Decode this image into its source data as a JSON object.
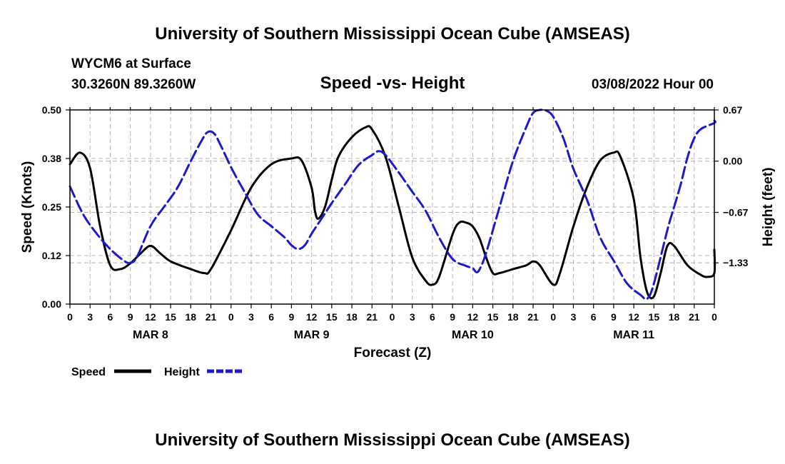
{
  "header": {
    "title": "University of Southern Mississippi Ocean Cube (AMSEAS)",
    "station": "WYCM6 at Surface",
    "location": "30.3260N  89.3260W",
    "subtitle": "Speed -vs- Height",
    "date": "03/08/2022 Hour 00",
    "footer_title": "University of Southern Mississippi Ocean Cube (AMSEAS)"
  },
  "colors": {
    "speed": "#000000",
    "height": "#1a1acc",
    "grid": "#b4b4b4"
  },
  "chart_data": {
    "type": "line",
    "title": "Speed -vs- Height",
    "xlabel": "Forecast (Z)",
    "ylabel_left": "Speed (Knots)",
    "ylabel_right": "Height (feet)",
    "xlim": [
      0,
      96
    ],
    "ylim_left": [
      0,
      0.5
    ],
    "ylim_right": [
      -1.87,
      0.67
    ],
    "y_ticks_left": [
      {
        "value": 0.0,
        "label": "0.00"
      },
      {
        "value": 0.125,
        "label": "0.12"
      },
      {
        "value": 0.25,
        "label": "0.25"
      },
      {
        "value": 0.375,
        "label": "0.38"
      },
      {
        "value": 0.5,
        "label": "0.50"
      }
    ],
    "y_ticks_right": [
      {
        "value": 0.67,
        "label": "0.67"
      },
      {
        "value": 0.0,
        "label": "0.00"
      },
      {
        "value": -0.67,
        "label": "−0.67"
      },
      {
        "value": -1.33,
        "label": "−1.33"
      }
    ],
    "x_tick_labels": [
      "0",
      "3",
      "6",
      "9",
      "12",
      "15",
      "18",
      "21",
      "0",
      "3",
      "6",
      "9",
      "12",
      "15",
      "18",
      "21",
      "0",
      "3",
      "6",
      "9",
      "12",
      "15",
      "18",
      "21",
      "0",
      "3",
      "6",
      "9",
      "12",
      "15",
      "18",
      "21",
      "0"
    ],
    "day_labels": [
      {
        "x": 12,
        "label": "MAR 8"
      },
      {
        "x": 36,
        "label": "MAR 9"
      },
      {
        "x": 60,
        "label": "MAR 10"
      },
      {
        "x": 84,
        "label": "MAR 11"
      }
    ],
    "legend": [
      {
        "name": "Speed",
        "style": "solid"
      },
      {
        "name": "Height",
        "style": "dashed"
      }
    ],
    "series": [
      {
        "name": "Speed",
        "axis": "left",
        "points": [
          [
            0,
            0.36
          ],
          [
            1.5,
            0.39
          ],
          [
            3,
            0.35
          ],
          [
            4.5,
            0.2
          ],
          [
            6,
            0.1
          ],
          [
            7.5,
            0.09
          ],
          [
            9,
            0.105
          ],
          [
            10.5,
            0.13
          ],
          [
            12,
            0.15
          ],
          [
            13.5,
            0.13
          ],
          [
            15,
            0.11
          ],
          [
            18,
            0.09
          ],
          [
            20,
            0.08
          ],
          [
            21,
            0.09
          ],
          [
            24,
            0.19
          ],
          [
            27,
            0.3
          ],
          [
            30,
            0.36
          ],
          [
            33,
            0.375
          ],
          [
            34.5,
            0.37
          ],
          [
            36,
            0.3
          ],
          [
            36.5,
            0.24
          ],
          [
            37,
            0.22
          ],
          [
            38,
            0.25
          ],
          [
            39,
            0.32
          ],
          [
            40,
            0.38
          ],
          [
            42,
            0.43
          ],
          [
            44,
            0.455
          ],
          [
            45,
            0.45
          ],
          [
            47,
            0.38
          ],
          [
            49,
            0.25
          ],
          [
            51,
            0.12
          ],
          [
            53,
            0.06
          ],
          [
            54,
            0.05
          ],
          [
            55,
            0.07
          ],
          [
            57,
            0.18
          ],
          [
            58,
            0.21
          ],
          [
            59,
            0.21
          ],
          [
            60,
            0.2
          ],
          [
            61,
            0.17
          ],
          [
            62,
            0.12
          ],
          [
            63,
            0.08
          ],
          [
            64,
            0.08
          ],
          [
            66,
            0.09
          ],
          [
            68,
            0.1
          ],
          [
            69,
            0.11
          ],
          [
            70,
            0.1
          ],
          [
            72,
            0.05
          ],
          [
            73,
            0.08
          ],
          [
            75,
            0.2
          ],
          [
            77,
            0.3
          ],
          [
            79,
            0.37
          ],
          [
            81,
            0.39
          ],
          [
            82,
            0.38
          ],
          [
            84,
            0.27
          ],
          [
            85,
            0.12
          ],
          [
            86,
            0.03
          ],
          [
            87,
            0.02
          ],
          [
            88,
            0.08
          ],
          [
            89,
            0.15
          ],
          [
            90,
            0.15
          ],
          [
            92,
            0.1
          ],
          [
            94,
            0.075
          ],
          [
            95,
            0.07
          ],
          [
            96,
            0.08
          ],
          [
            96.5,
            0.14
          ]
        ]
      },
      {
        "name": "Height",
        "axis": "right",
        "points": [
          [
            0,
            -0.33
          ],
          [
            2,
            -0.7
          ],
          [
            4,
            -0.95
          ],
          [
            6,
            -1.15
          ],
          [
            8,
            -1.3
          ],
          [
            9,
            -1.33
          ],
          [
            10,
            -1.25
          ],
          [
            12,
            -0.85
          ],
          [
            14,
            -0.6
          ],
          [
            16,
            -0.35
          ],
          [
            18,
            0.0
          ],
          [
            19.5,
            0.25
          ],
          [
            20.5,
            0.38
          ],
          [
            21.5,
            0.36
          ],
          [
            22.5,
            0.2
          ],
          [
            24,
            -0.08
          ],
          [
            26,
            -0.4
          ],
          [
            28,
            -0.7
          ],
          [
            30,
            -0.85
          ],
          [
            32,
            -1.0
          ],
          [
            33,
            -1.1
          ],
          [
            34,
            -1.15
          ],
          [
            35,
            -1.1
          ],
          [
            36,
            -0.95
          ],
          [
            37.5,
            -0.75
          ],
          [
            39,
            -0.55
          ],
          [
            41,
            -0.3
          ],
          [
            43,
            -0.05
          ],
          [
            45,
            0.08
          ],
          [
            46,
            0.13
          ],
          [
            47,
            0.08
          ],
          [
            49,
            -0.15
          ],
          [
            51,
            -0.4
          ],
          [
            53,
            -0.65
          ],
          [
            55,
            -1.0
          ],
          [
            57,
            -1.28
          ],
          [
            59,
            -1.37
          ],
          [
            60,
            -1.4
          ],
          [
            60.5,
            -1.45
          ],
          [
            61,
            -1.42
          ],
          [
            62,
            -1.2
          ],
          [
            64,
            -0.6
          ],
          [
            66,
            0.0
          ],
          [
            68,
            0.45
          ],
          [
            69,
            0.63
          ],
          [
            70,
            0.67
          ],
          [
            71,
            0.66
          ],
          [
            72,
            0.58
          ],
          [
            73.5,
            0.3
          ],
          [
            75,
            -0.1
          ],
          [
            77,
            -0.5
          ],
          [
            79,
            -1.0
          ],
          [
            81,
            -1.3
          ],
          [
            83,
            -1.6
          ],
          [
            85,
            -1.75
          ],
          [
            86,
            -1.8
          ],
          [
            87,
            -1.6
          ],
          [
            89,
            -0.9
          ],
          [
            90,
            -0.6
          ],
          [
            91,
            -0.3
          ],
          [
            92,
            0.05
          ],
          [
            93,
            0.3
          ],
          [
            94,
            0.42
          ],
          [
            96,
            0.5
          ],
          [
            96.5,
            0.53
          ]
        ]
      }
    ]
  }
}
